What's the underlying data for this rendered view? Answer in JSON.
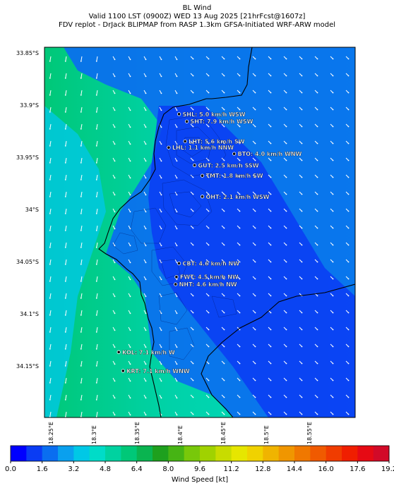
{
  "header": {
    "line1": "BL Wind",
    "line2": "Valid 1100 LST (0900Z) WED 13 Aug 2025 [21hrFcst@1607z]",
    "line3": "FDV replot - DrJack BLIPMAP from RASP 1.3km GFSA-Initiated WRF-ARW model"
  },
  "map": {
    "lat_ticks": [
      "33.85°S",
      "33.9°S",
      "33.95°S",
      "34°S",
      "34.05°S",
      "34.1°S",
      "34.15°S"
    ],
    "lon_ticks": [
      "18.25°E",
      "18.3°E",
      "18.35°E",
      "18.4°E",
      "18.45°E",
      "18.5°E",
      "18.55°E"
    ],
    "lat_values": [
      -33.85,
      -33.9,
      -33.95,
      -34.0,
      -34.05,
      -34.1,
      -34.15
    ],
    "lon_values": [
      18.25,
      18.3,
      18.35,
      18.4,
      18.45,
      18.5,
      18.55
    ],
    "stations": [
      {
        "label": "SHL: 5.0 km/h WSW",
        "lon": 18.398,
        "lat": -33.908
      },
      {
        "label": "SHT: 7.9 km/h WSW",
        "lon": 18.407,
        "lat": -33.915
      },
      {
        "label": "LHT: 5.6 km/h SW",
        "lon": 18.405,
        "lat": -33.934
      },
      {
        "label": "LHL: 1.1 km/h NNW",
        "lon": 18.386,
        "lat": -33.94
      },
      {
        "label": "BTO: 4.0 km/h WNW",
        "lon": 18.462,
        "lat": -33.946
      },
      {
        "label": "GUT: 2.5 km/h SSW",
        "lon": 18.416,
        "lat": -33.957
      },
      {
        "label": "TMT: 1.8 km/h SW",
        "lon": 18.425,
        "lat": -33.967
      },
      {
        "label": "OHT: 2.1 km/h WSW",
        "lon": 18.425,
        "lat": -33.987
      },
      {
        "label": "CBT: 4.6 km/h NW",
        "lon": 18.398,
        "lat": -34.051
      },
      {
        "label": "FWT: 4.5 km/h NW",
        "lon": 18.395,
        "lat": -34.064
      },
      {
        "label": "NHT: 4.6 km/h NW",
        "lon": 18.394,
        "lat": -34.071
      },
      {
        "label": "KOL: 7.1 km/h W",
        "lon": 18.328,
        "lat": -34.136
      },
      {
        "label": "KRT: 7.1 km/h WNW",
        "lon": 18.333,
        "lat": -34.154
      }
    ]
  },
  "colorbar": {
    "title": "Wind Speed [kt]",
    "tick_labels": [
      "0.0",
      "1.6",
      "3.2",
      "4.8",
      "6.4",
      "8.0",
      "9.6",
      "11.2",
      "12.8",
      "14.4",
      "16.0",
      "17.6",
      "19.2"
    ],
    "colors": [
      "#0000ff",
      "#0a3cf4",
      "#0a6ef0",
      "#0aa0ee",
      "#00c8e6",
      "#00dcc8",
      "#00d2a0",
      "#00c878",
      "#0ab450",
      "#1ea01e",
      "#46b414",
      "#78c80a",
      "#a0d200",
      "#c8dc00",
      "#e6e600",
      "#f0d200",
      "#f0b400",
      "#f09600",
      "#f07800",
      "#f05a00",
      "#f03c00",
      "#f01e00",
      "#e60a14",
      "#d20a28"
    ]
  }
}
